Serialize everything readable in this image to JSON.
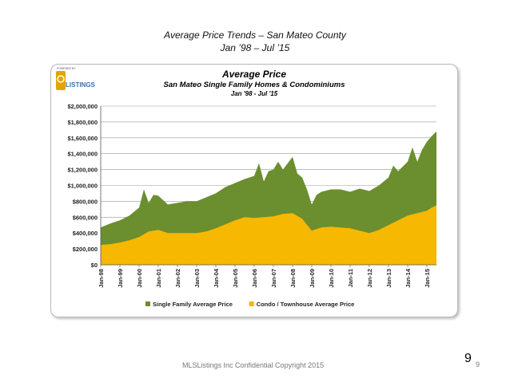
{
  "slide": {
    "title": "Average Price Trends – San Mateo County",
    "subtitle": "Jan ’98 – Jul ’15",
    "footer": "MLSListings Inc Confidential Copyright 2015",
    "page_number": "9",
    "logo": {
      "small_text": "POWERED BY",
      "text": "LISTINGS"
    }
  },
  "chart_data": {
    "type": "area",
    "title": "Average Price",
    "subtitle": "San Mateo Single Family Homes & Condominiums",
    "subtitle2": "Jan '98 - Jul '15",
    "ylim": [
      0,
      2000000
    ],
    "yticks": [
      {
        "value": 0,
        "label": "$0"
      },
      {
        "value": 200000,
        "label": "$200,000"
      },
      {
        "value": 400000,
        "label": "$400,000"
      },
      {
        "value": 600000,
        "label": "$600,000"
      },
      {
        "value": 800000,
        "label": "$800,000"
      },
      {
        "value": 1000000,
        "label": "$1,000,000"
      },
      {
        "value": 1200000,
        "label": "$1,200,000"
      },
      {
        "value": 1400000,
        "label": "$1,400,000"
      },
      {
        "value": 1600000,
        "label": "$1,600,000"
      },
      {
        "value": 1800000,
        "label": "$1,800,000"
      },
      {
        "value": 2000000,
        "label": "$2,000,000"
      }
    ],
    "xlim": [
      1998.0,
      2015.5
    ],
    "xticks": [
      {
        "value": 1998,
        "label": "Jan-98"
      },
      {
        "value": 1999,
        "label": "Jan-99"
      },
      {
        "value": 2000,
        "label": "Jan-00"
      },
      {
        "value": 2001,
        "label": "Jan-01"
      },
      {
        "value": 2002,
        "label": "Jan-02"
      },
      {
        "value": 2003,
        "label": "Jan-03"
      },
      {
        "value": 2004,
        "label": "Jan-04"
      },
      {
        "value": 2005,
        "label": "Jan-05"
      },
      {
        "value": 2006,
        "label": "Jan-06"
      },
      {
        "value": 2007,
        "label": "Jan-07"
      },
      {
        "value": 2008,
        "label": "Jan-08"
      },
      {
        "value": 2009,
        "label": "Jan-09"
      },
      {
        "value": 2010,
        "label": "Jan-10"
      },
      {
        "value": 2011,
        "label": "Jan-11"
      },
      {
        "value": 2012,
        "label": "Jan-12"
      },
      {
        "value": 2013,
        "label": "Jan-13"
      },
      {
        "value": 2014,
        "label": "Jan-14"
      },
      {
        "value": 2015,
        "label": "Jan-15"
      }
    ],
    "grid": true,
    "legend_position": "bottom",
    "series": [
      {
        "name": "Single Family Average Price",
        "color": "#6b8e2f",
        "x": [
          1998.0,
          1998.5,
          1999.0,
          1999.5,
          2000.0,
          2000.25,
          2000.5,
          2000.75,
          2001.0,
          2001.5,
          2002.0,
          2002.5,
          2003.0,
          2003.5,
          2004.0,
          2004.5,
          2005.0,
          2005.5,
          2006.0,
          2006.25,
          2006.5,
          2006.75,
          2007.0,
          2007.25,
          2007.5,
          2007.75,
          2008.0,
          2008.25,
          2008.5,
          2008.75,
          2009.0,
          2009.25,
          2009.5,
          2010.0,
          2010.5,
          2011.0,
          2011.5,
          2012.0,
          2012.5,
          2013.0,
          2013.25,
          2013.5,
          2014.0,
          2014.25,
          2014.5,
          2014.75,
          2015.0,
          2015.25,
          2015.5
        ],
        "values": [
          470000,
          520000,
          560000,
          620000,
          720000,
          950000,
          780000,
          880000,
          870000,
          760000,
          780000,
          800000,
          800000,
          850000,
          900000,
          980000,
          1030000,
          1080000,
          1120000,
          1280000,
          1050000,
          1180000,
          1200000,
          1300000,
          1200000,
          1280000,
          1360000,
          1150000,
          1100000,
          950000,
          760000,
          880000,
          920000,
          950000,
          950000,
          920000,
          960000,
          930000,
          1000000,
          1100000,
          1250000,
          1180000,
          1300000,
          1480000,
          1300000,
          1450000,
          1550000,
          1620000,
          1680000
        ]
      },
      {
        "name": "Condo / Townhouse Average Price",
        "color": "#f6b800",
        "x": [
          1998.0,
          1998.5,
          1999.0,
          1999.5,
          2000.0,
          2000.5,
          2001.0,
          2001.5,
          2002.0,
          2002.5,
          2003.0,
          2003.5,
          2004.0,
          2004.5,
          2005.0,
          2005.5,
          2006.0,
          2006.5,
          2007.0,
          2007.5,
          2008.0,
          2008.5,
          2009.0,
          2009.5,
          2010.0,
          2010.5,
          2011.0,
          2011.5,
          2012.0,
          2012.5,
          2013.0,
          2013.5,
          2014.0,
          2014.5,
          2015.0,
          2015.25,
          2015.5
        ],
        "values": [
          250000,
          260000,
          280000,
          310000,
          350000,
          420000,
          440000,
          400000,
          400000,
          400000,
          400000,
          420000,
          460000,
          510000,
          560000,
          600000,
          590000,
          600000,
          610000,
          640000,
          650000,
          580000,
          430000,
          470000,
          480000,
          470000,
          460000,
          430000,
          400000,
          440000,
          500000,
          560000,
          620000,
          650000,
          680000,
          720000,
          750000
        ]
      }
    ],
    "legend": [
      {
        "label": "Single Family Average Price",
        "color": "#6b8e2f"
      },
      {
        "label": "Condo  /  Townhouse Average Price",
        "color": "#f6b800"
      }
    ]
  }
}
